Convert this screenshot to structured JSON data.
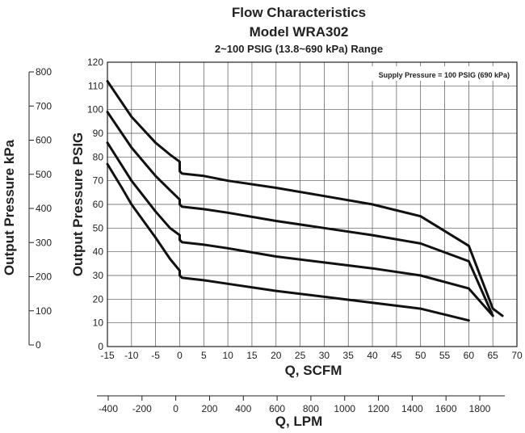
{
  "chart_data": {
    "type": "line",
    "title": "Flow Characteristics",
    "subtitle_model": "Model WRA302",
    "subtitle_range": "2~100 PSIG (13.8~690 kPa) Range",
    "annotation": "Supply Pressure = 100 PSIG (690 kPa)",
    "xlabel": "Q, SCFM",
    "ylabel": "Output Pressure PSIG",
    "secondary_xlabel": "Q, LPM",
    "secondary_ylabel": "Output Pressure kPa",
    "xlim": [
      -15,
      70
    ],
    "ylim": [
      0,
      120
    ],
    "xticks": [
      -15,
      -10,
      -5,
      0,
      5,
      10,
      15,
      20,
      25,
      30,
      35,
      40,
      45,
      50,
      55,
      60,
      65,
      70
    ],
    "xtick_labels": [
      "-15",
      "-10",
      "-5",
      "0",
      "5",
      "10",
      "15",
      "20",
      "25",
      "30",
      "35",
      "40",
      "45",
      "50",
      "55",
      "60",
      "65",
      "70"
    ],
    "yticks": [
      0,
      10,
      20,
      30,
      40,
      50,
      60,
      70,
      80,
      90,
      100,
      110,
      120
    ],
    "ytick_labels": [
      "0",
      "10",
      "20",
      "30",
      "40",
      "50",
      "60",
      "70",
      "80",
      "90",
      "100",
      "110",
      "120"
    ],
    "secondary_xticks": [
      -400,
      -200,
      0,
      200,
      400,
      600,
      800,
      1000,
      1200,
      1400,
      1600,
      1800
    ],
    "secondary_xtick_labels": [
      "-400",
      "-200",
      "0",
      "200",
      "400",
      "600",
      "800",
      "1000",
      "1200",
      "1400",
      "1600",
      "1800"
    ],
    "secondary_yticks": [
      0,
      100,
      200,
      300,
      400,
      500,
      600,
      700,
      800
    ],
    "secondary_ytick_labels": [
      "0",
      "100",
      "200",
      "300",
      "400",
      "500",
      "600",
      "700",
      "800"
    ],
    "grid": true,
    "series": [
      {
        "x": [
          -15,
          -10,
          -5,
          -2,
          0,
          0,
          0.5,
          5,
          10,
          20,
          30,
          40,
          50,
          60,
          65,
          67
        ],
        "y": [
          112,
          97,
          86,
          81,
          78,
          74,
          73,
          72,
          70,
          67,
          63.5,
          60,
          55,
          42.5,
          16,
          13
        ]
      },
      {
        "x": [
          -15,
          -10,
          -5,
          -2,
          0,
          0,
          0.5,
          5,
          10,
          20,
          30,
          40,
          50,
          60,
          65
        ],
        "y": [
          99,
          84,
          72,
          66,
          62,
          60,
          59,
          58,
          56.5,
          53,
          50,
          47,
          43.5,
          36,
          13
        ]
      },
      {
        "x": [
          -15,
          -10,
          -5,
          -2,
          0,
          0,
          0.5,
          5,
          10,
          20,
          30,
          40,
          50,
          60,
          65
        ],
        "y": [
          86,
          70,
          57,
          50,
          47,
          45,
          44,
          43,
          41.5,
          38,
          35.5,
          33,
          30,
          24.5,
          13
        ]
      },
      {
        "x": [
          -15,
          -12,
          -10,
          -5,
          -2,
          0,
          0,
          0.5,
          5,
          10,
          20,
          30,
          40,
          50,
          60
        ],
        "y": [
          77,
          67,
          60,
          46,
          37,
          32,
          30,
          29,
          28,
          26.5,
          23.5,
          21,
          18.5,
          16,
          11
        ]
      }
    ]
  }
}
